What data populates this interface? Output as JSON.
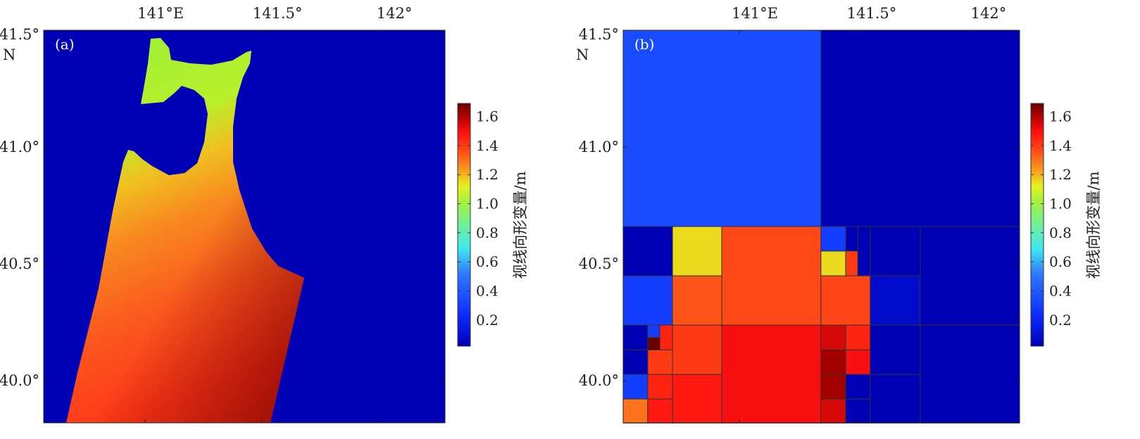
{
  "chart_data": [
    {
      "type": "heatmap",
      "panel_label": "(a)",
      "description_type": "continuous raster",
      "x_ticks": [
        {
          "value": 141.0,
          "label": "141°E"
        },
        {
          "value": 141.5,
          "label": "141.5°"
        },
        {
          "value": 142.0,
          "label": "142°"
        }
      ],
      "y_ticks": [
        {
          "value": 41.5,
          "label": "41.5°"
        },
        {
          "value": 41.0,
          "label": "41.0°"
        },
        {
          "value": 40.5,
          "label": "40.5°"
        },
        {
          "value": 40.0,
          "label": "40.0°"
        }
      ],
      "y_unit_label": "N",
      "xlim": [
        140.566,
        142.283
      ],
      "ylim": [
        39.82,
        41.5
      ],
      "background_value": 0.0,
      "land_value_range": [
        0.9,
        1.6
      ],
      "colorbar": {
        "label": "视线向形变量/m",
        "ticks": [
          "0.2",
          "0.4",
          "0.6",
          "0.8",
          "1.0",
          "1.2",
          "1.4",
          "1.6"
        ],
        "range": [
          0.02,
          1.69
        ],
        "colormap": "jet"
      }
    },
    {
      "type": "heatmap",
      "panel_label": "(b)",
      "description_type": "quadtree downsampled",
      "x_ticks": [
        {
          "value": 141.0,
          "label": "141°E"
        },
        {
          "value": 141.5,
          "label": "141.5°"
        },
        {
          "value": 142.0,
          "label": "142°"
        }
      ],
      "y_ticks": [
        {
          "value": 41.5,
          "label": "41.5°"
        },
        {
          "value": 41.0,
          "label": "41.0°"
        },
        {
          "value": 40.5,
          "label": "40.5°"
        },
        {
          "value": 40.0,
          "label": "40.0°"
        }
      ],
      "y_unit_label": "N",
      "xlim": [
        140.503,
        142.199
      ],
      "ylim": [
        39.82,
        41.5
      ],
      "cells": [
        {
          "lon": [
            140.503,
            141.349
          ],
          "lat": [
            40.66,
            41.5
          ],
          "v": 0.35
        },
        {
          "lon": [
            141.349,
            142.199
          ],
          "lat": [
            40.66,
            41.5
          ],
          "v": 0.0
        },
        {
          "lon": [
            140.503,
            140.714
          ],
          "lat": [
            40.449,
            40.66
          ],
          "v": 0.0
        },
        {
          "lon": [
            140.503,
            140.714
          ],
          "lat": [
            40.238,
            40.449
          ],
          "v": 0.3
        },
        {
          "lon": [
            140.714,
            140.925
          ],
          "lat": [
            40.449,
            40.66
          ],
          "v": 1.15
        },
        {
          "lon": [
            140.714,
            140.925
          ],
          "lat": [
            40.238,
            40.449
          ],
          "v": 1.35
        },
        {
          "lon": [
            140.925,
            141.349
          ],
          "lat": [
            40.238,
            40.66
          ],
          "v": 1.37
        },
        {
          "lon": [
            141.349,
            141.455
          ],
          "lat": [
            40.555,
            40.66
          ],
          "v": 0.3
        },
        {
          "lon": [
            141.349,
            141.455
          ],
          "lat": [
            40.449,
            40.555
          ],
          "v": 1.15
        },
        {
          "lon": [
            141.455,
            141.507
          ],
          "lat": [
            40.555,
            40.66
          ],
          "v": 0.0
        },
        {
          "lon": [
            141.455,
            141.507
          ],
          "lat": [
            40.449,
            40.555
          ],
          "v": 1.4
        },
        {
          "lon": [
            141.507,
            141.56
          ],
          "lat": [
            40.449,
            40.66
          ],
          "v": 0.0
        },
        {
          "lon": [
            141.349,
            141.56
          ],
          "lat": [
            40.238,
            40.449
          ],
          "v": 1.38
        },
        {
          "lon": [
            141.56,
            141.774
          ],
          "lat": [
            40.449,
            40.66
          ],
          "v": 0.0
        },
        {
          "lon": [
            141.56,
            141.774
          ],
          "lat": [
            40.238,
            40.449
          ],
          "v": 0.08
        },
        {
          "lon": [
            141.774,
            142.199
          ],
          "lat": [
            40.238,
            40.66
          ],
          "v": 0.0
        },
        {
          "lon": [
            140.503,
            140.608
          ],
          "lat": [
            40.132,
            40.238
          ],
          "v": 0.0
        },
        {
          "lon": [
            140.608,
            140.66
          ],
          "lat": [
            40.185,
            40.238
          ],
          "v": 0.3
        },
        {
          "lon": [
            140.66,
            140.714
          ],
          "lat": [
            40.132,
            40.238
          ],
          "v": 1.45
        },
        {
          "lon": [
            140.608,
            140.714
          ],
          "lat": [
            40.027,
            40.132
          ],
          "v": 1.4
        },
        {
          "lon": [
            140.503,
            140.608
          ],
          "lat": [
            40.027,
            40.132
          ],
          "v": 0.0
        },
        {
          "lon": [
            140.503,
            140.608
          ],
          "lat": [
            39.922,
            40.027
          ],
          "v": 0.3
        },
        {
          "lon": [
            140.608,
            140.714
          ],
          "lat": [
            39.922,
            40.027
          ],
          "v": 1.45
        },
        {
          "lon": [
            140.503,
            140.608
          ],
          "lat": [
            39.819,
            39.922
          ],
          "v": 1.3
        },
        {
          "lon": [
            140.608,
            140.714
          ],
          "lat": [
            39.819,
            39.922
          ],
          "v": 1.47
        },
        {
          "lon": [
            140.714,
            140.925
          ],
          "lat": [
            40.027,
            40.238
          ],
          "v": 1.4
        },
        {
          "lon": [
            140.714,
            140.925
          ],
          "lat": [
            39.819,
            40.027
          ],
          "v": 1.47
        },
        {
          "lon": [
            140.925,
            141.349
          ],
          "lat": [
            39.819,
            40.238
          ],
          "v": 1.5
        },
        {
          "lon": [
            141.349,
            141.455
          ],
          "lat": [
            40.132,
            40.238
          ],
          "v": 1.55
        },
        {
          "lon": [
            141.455,
            141.56
          ],
          "lat": [
            40.132,
            40.238
          ],
          "v": 1.45
        },
        {
          "lon": [
            141.349,
            141.455
          ],
          "lat": [
            40.027,
            40.132
          ],
          "v": 1.62
        },
        {
          "lon": [
            141.455,
            141.56
          ],
          "lat": [
            40.027,
            40.132
          ],
          "v": 1.5
        },
        {
          "lon": [
            141.349,
            141.455
          ],
          "lat": [
            39.922,
            40.027
          ],
          "v": 1.62
        },
        {
          "lon": [
            141.455,
            141.56
          ],
          "lat": [
            39.922,
            40.027
          ],
          "v": 0.0
        },
        {
          "lon": [
            141.349,
            141.455
          ],
          "lat": [
            39.819,
            39.922
          ],
          "v": 1.55
        },
        {
          "lon": [
            141.455,
            141.56
          ],
          "lat": [
            39.819,
            39.922
          ],
          "v": 0.0
        },
        {
          "lon": [
            141.56,
            141.774
          ],
          "lat": [
            40.027,
            40.238
          ],
          "v": 0.0
        },
        {
          "lon": [
            141.56,
            141.774
          ],
          "lat": [
            39.819,
            40.027
          ],
          "v": 0.0
        },
        {
          "lon": [
            141.774,
            142.199
          ],
          "lat": [
            39.819,
            40.238
          ],
          "v": 0.0
        }
      ],
      "colorbar": {
        "label": "视线向形变量/m",
        "ticks": [
          "0.2",
          "0.4",
          "0.6",
          "0.8",
          "1.0",
          "1.2",
          "1.4",
          "1.6"
        ],
        "range": [
          0.02,
          1.69
        ],
        "colormap": "jet"
      }
    }
  ]
}
